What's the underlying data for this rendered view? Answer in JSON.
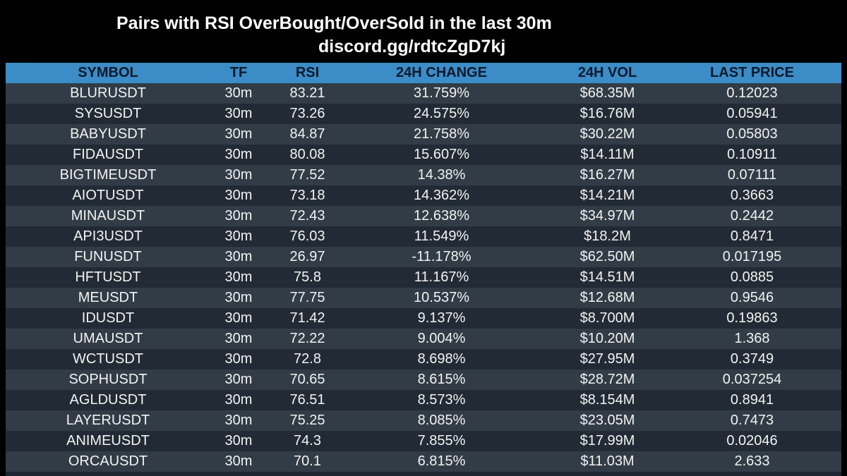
{
  "title": {
    "line1": "Pairs with RSI OverBought/OverSold in the last 30m",
    "line2": "discord.gg/rdtcZgD7kj"
  },
  "table": {
    "headers": [
      "SYMBOL",
      "TF",
      "RSI",
      "24H CHANGE",
      "24H VOL",
      "LAST PRICE"
    ],
    "rows": [
      [
        "BLURUSDT",
        "30m",
        "83.21",
        "31.759%",
        "$68.35M",
        "0.12023"
      ],
      [
        "SYSUSDT",
        "30m",
        "73.26",
        "24.575%",
        "$16.76M",
        "0.05941"
      ],
      [
        "BABYUSDT",
        "30m",
        "84.87",
        "21.758%",
        "$30.22M",
        "0.05803"
      ],
      [
        "FIDAUSDT",
        "30m",
        "80.08",
        "15.607%",
        "$14.11M",
        "0.10911"
      ],
      [
        "BIGTIMEUSDT",
        "30m",
        "77.52",
        "14.38%",
        "$16.27M",
        "0.07111"
      ],
      [
        "AIOTUSDT",
        "30m",
        "73.18",
        "14.362%",
        "$14.21M",
        "0.3663"
      ],
      [
        "MINAUSDT",
        "30m",
        "72.43",
        "12.638%",
        "$34.97M",
        "0.2442"
      ],
      [
        "API3USDT",
        "30m",
        "76.03",
        "11.549%",
        "$18.2M",
        "0.8471"
      ],
      [
        "FUNUSDT",
        "30m",
        "26.97",
        "-11.178%",
        "$62.50M",
        "0.017195"
      ],
      [
        "HFTUSDT",
        "30m",
        "75.8",
        "11.167%",
        "$14.51M",
        "0.0885"
      ],
      [
        "MEUSDT",
        "30m",
        "77.75",
        "10.537%",
        "$12.68M",
        "0.9546"
      ],
      [
        "IDUSDT",
        "30m",
        "71.42",
        "9.137%",
        "$8.700M",
        "0.19863"
      ],
      [
        "UMAUSDT",
        "30m",
        "72.22",
        "9.004%",
        "$10.20M",
        "1.368"
      ],
      [
        "WCTUSDT",
        "30m",
        "72.8",
        "8.698%",
        "$27.95M",
        "0.3749"
      ],
      [
        "SOPHUSDT",
        "30m",
        "70.65",
        "8.615%",
        "$28.72M",
        "0.037254"
      ],
      [
        "AGLDUSDT",
        "30m",
        "76.51",
        "8.573%",
        "$8.154M",
        "0.8941"
      ],
      [
        "LAYERUSDT",
        "30m",
        "75.25",
        "8.085%",
        "$23.05M",
        "0.7473"
      ],
      [
        "ANIMEUSDT",
        "30m",
        "74.3",
        "7.855%",
        "$17.99M",
        "0.02046"
      ],
      [
        "ORCAUSDT",
        "30m",
        "70.1",
        "6.815%",
        "$11.03M",
        "2.633"
      ]
    ]
  },
  "colors": {
    "background": "#000000",
    "header": "#3b8cc7",
    "row_odd": "#313c46",
    "row_even": "#222b35",
    "text": "#f2f2f2"
  }
}
